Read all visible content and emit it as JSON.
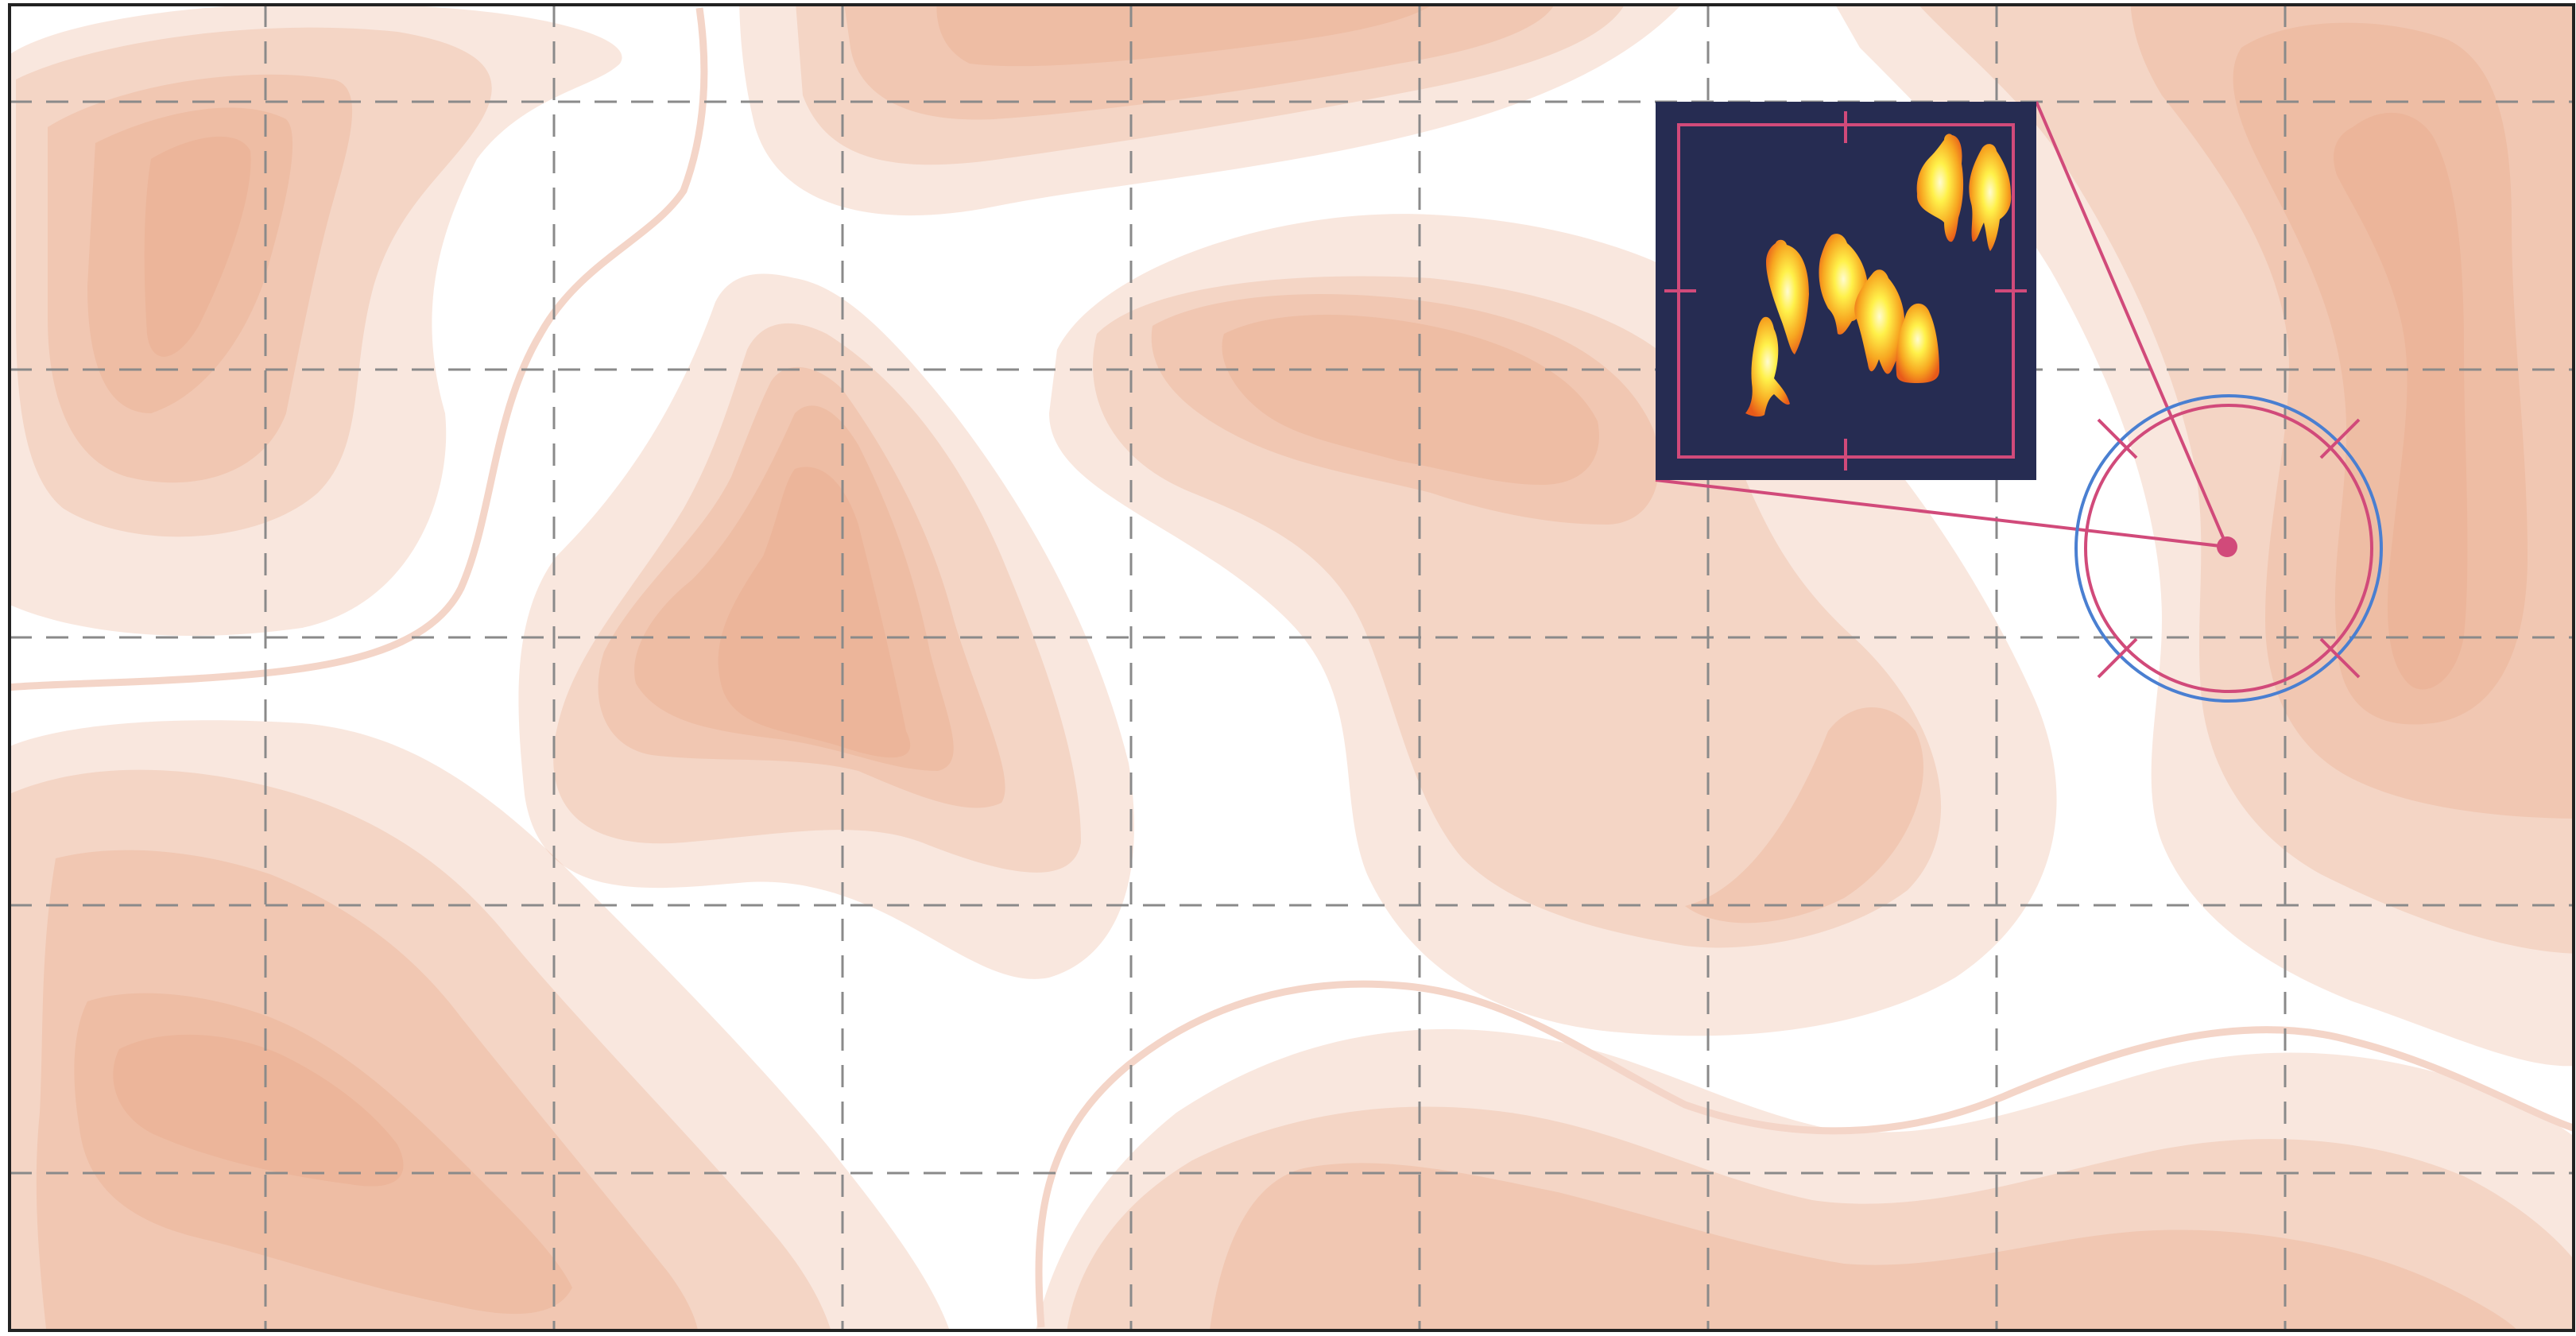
{
  "map": {
    "contour_fill_color": "#e8a07c",
    "contour_levels": 5,
    "grid": {
      "visible": true,
      "style": "dashed",
      "color": "#8a8a8a"
    },
    "frame_color": "#222222"
  },
  "target": {
    "marker_color": "#d14a7a",
    "outer_ring_color": "#4a7fd1",
    "marker_icon": "crosshair-reticle-icon"
  },
  "thermal_inset": {
    "background_color": "#262c52",
    "frame_color": "#d14a7a",
    "content": "thermal-heat-signatures",
    "signature_count": 7,
    "hot_color": "#fff14a",
    "warm_color": "#f07a1e"
  }
}
